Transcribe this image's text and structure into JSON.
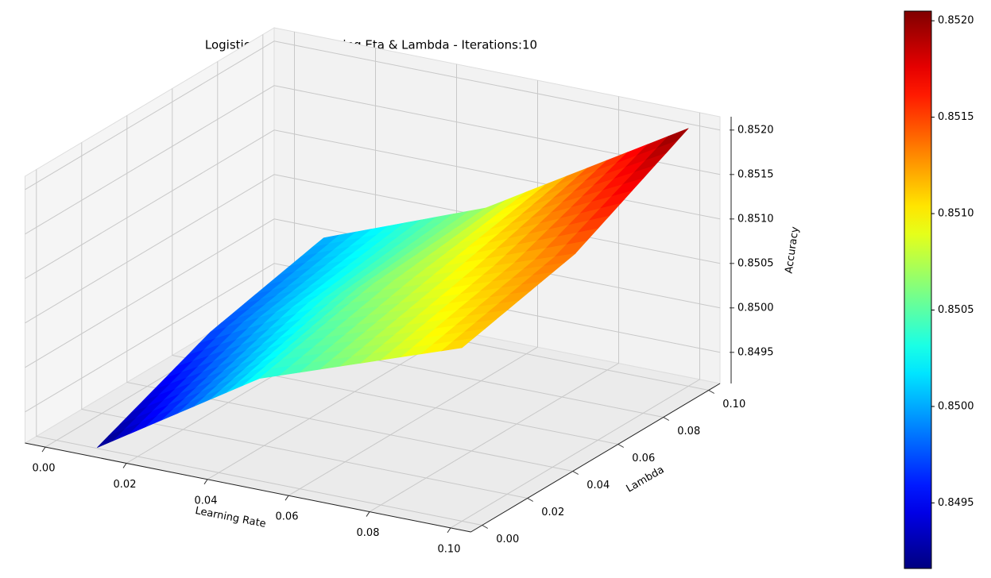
{
  "chart_data": {
    "type": "surface",
    "title": "Logistic Regression tuning Eta & Lambda - Iterations:10",
    "xlabel": "Learning Rate",
    "ylabel": "Lambda",
    "zlabel": "Accuracy",
    "x": [
      0.01,
      0.05,
      0.1
    ],
    "y": [
      0,
      0.05,
      0.1
    ],
    "z": [
      [
        0.84916,
        0.8503,
        0.8511
      ],
      [
        0.8497,
        0.8506,
        0.8514
      ],
      [
        0.85,
        0.8507,
        0.85205
      ]
    ],
    "xlim": [
      -0.005,
      0.105
    ],
    "ylim": [
      -0.005,
      0.105
    ],
    "zlim": [
      0.84915,
      0.85215
    ],
    "xticks": [
      {
        "value": 0,
        "label": "0.00"
      },
      0.02,
      0.04,
      0.06,
      0.08,
      {
        "value": 0.1,
        "label": "0.10"
      }
    ],
    "yticks": [
      {
        "value": 0,
        "label": "0.00"
      },
      0.02,
      0.04,
      0.06,
      0.08,
      {
        "value": 0.1,
        "label": "0.10"
      }
    ],
    "zticks": [
      0.8495,
      {
        "value": 0.85,
        "label": "0.8500"
      },
      0.8505,
      {
        "value": 0.851,
        "label": "0.8510"
      },
      0.8515,
      {
        "value": 0.852,
        "label": "0.8520"
      }
    ],
    "colormap": "jet",
    "colorbar": {
      "clim": [
        0.84916,
        0.85205
      ],
      "ticks": [
        0.8495,
        {
          "value": 0.85,
          "label": "0.8500"
        },
        0.8505,
        {
          "value": 0.851,
          "label": "0.8510"
        },
        0.8515,
        {
          "value": 0.852,
          "label": "0.8520"
        }
      ]
    },
    "grid": true
  }
}
